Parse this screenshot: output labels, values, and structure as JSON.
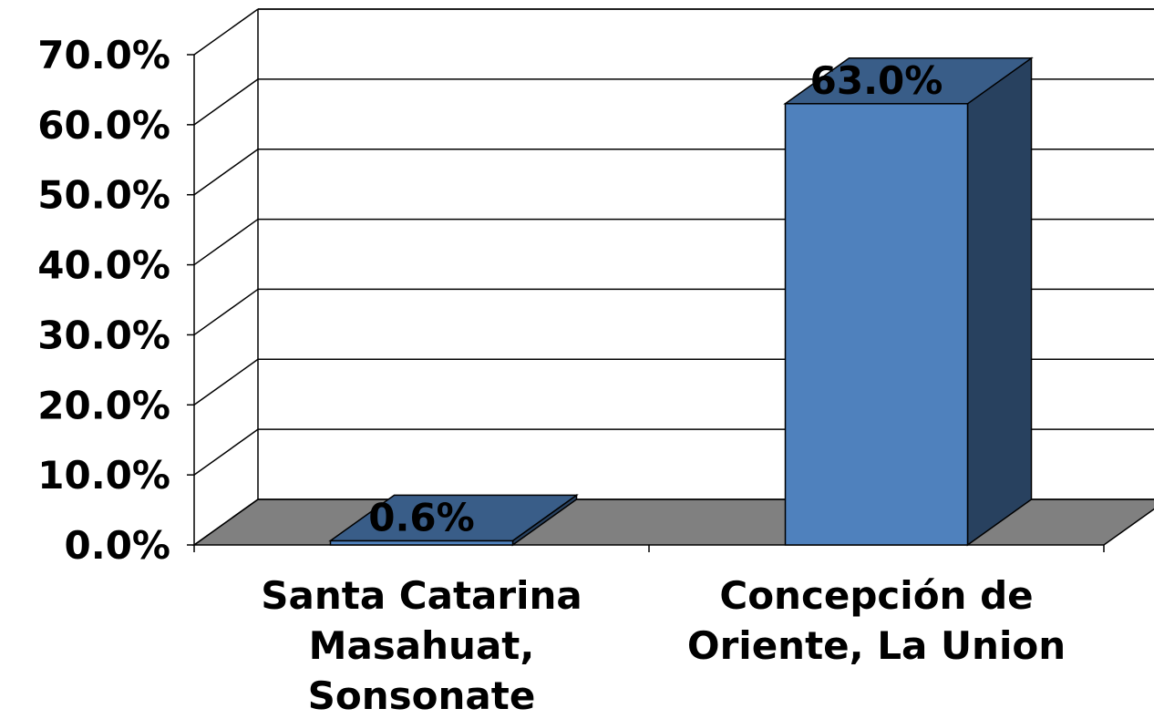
{
  "chart_data": {
    "type": "bar3d",
    "categories": [
      "Santa Catarina Masahuat, Sonsonate",
      "Concepción de Oriente, La Union"
    ],
    "values": [
      0.6,
      63.0
    ],
    "value_labels": [
      "0.6%",
      "63.0%"
    ],
    "color": "#4f81bd",
    "floor_color": "#808080",
    "ylim": [
      0,
      70
    ],
    "yticks": [
      {
        "value": 0,
        "label": "0.0%"
      },
      {
        "value": 10,
        "label": "10.0%"
      },
      {
        "value": 20,
        "label": "20.0%"
      },
      {
        "value": 30,
        "label": "30.0%"
      },
      {
        "value": 40,
        "label": "40.0%"
      },
      {
        "value": 50,
        "label": "50.0%"
      },
      {
        "value": 60,
        "label": "60.0%"
      },
      {
        "value": 70,
        "label": "70.0%"
      }
    ],
    "grid": true
  }
}
